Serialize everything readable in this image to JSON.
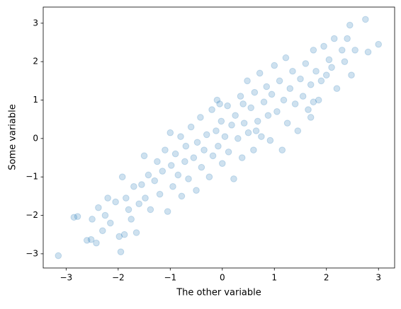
{
  "chart_data": {
    "type": "scatter",
    "xlabel": "The other variable",
    "ylabel": "Some variable",
    "color": "#1f77b4",
    "alpha": 0.22,
    "xlim": [
      -3.44,
      3.31
    ],
    "ylim": [
      -3.37,
      3.42
    ],
    "xticks": [
      {
        "value": -3,
        "label": "−3"
      },
      {
        "value": -2,
        "label": "−2"
      },
      {
        "value": -1,
        "label": "−1"
      },
      0,
      1,
      2,
      3
    ],
    "yticks": [
      {
        "value": -3,
        "label": "−3"
      },
      {
        "value": -2,
        "label": "−2"
      },
      {
        "value": -1,
        "label": "−1"
      },
      0,
      1,
      2,
      3
    ],
    "grid": false,
    "x": [
      -3.15,
      -2.85,
      -2.78,
      -2.6,
      -2.52,
      -2.5,
      -2.42,
      -2.38,
      -2.3,
      -2.25,
      -2.2,
      -2.15,
      -2.05,
      -1.98,
      -1.95,
      -1.92,
      -1.88,
      -1.85,
      -1.8,
      -1.75,
      -1.7,
      -1.65,
      -1.6,
      -1.55,
      -1.5,
      -1.48,
      -1.42,
      -1.38,
      -1.3,
      -1.25,
      -1.2,
      -1.15,
      -1.1,
      -1.05,
      -1.0,
      -0.98,
      -0.95,
      -0.9,
      -0.85,
      -0.8,
      -0.78,
      -0.72,
      -0.7,
      -0.65,
      -0.6,
      -0.55,
      -0.5,
      -0.48,
      -0.42,
      -0.4,
      -0.35,
      -0.3,
      -0.25,
      -0.2,
      -0.18,
      -0.12,
      -0.1,
      -0.08,
      -0.02,
      0.0,
      0.05,
      0.1,
      0.12,
      0.18,
      0.22,
      0.25,
      0.3,
      0.35,
      0.38,
      0.42,
      0.48,
      0.5,
      0.55,
      0.6,
      0.62,
      0.68,
      0.72,
      0.75,
      0.8,
      0.85,
      0.88,
      0.92,
      0.95,
      1.0,
      1.05,
      1.1,
      1.15,
      1.18,
      1.22,
      1.25,
      1.3,
      1.35,
      1.4,
      1.45,
      1.5,
      1.55,
      1.6,
      1.65,
      1.7,
      1.75,
      1.8,
      1.85,
      1.9,
      1.95,
      2.0,
      2.05,
      2.1,
      2.15,
      2.2,
      2.3,
      2.35,
      2.4,
      2.45,
      2.48,
      2.55,
      2.75,
      2.8,
      3.0,
      1.7,
      1.75,
      -0.05,
      0.4,
      0.65
    ],
    "y": [
      -3.05,
      -2.05,
      -2.03,
      -2.65,
      -2.63,
      -2.1,
      -2.72,
      -1.8,
      -2.4,
      -2.0,
      -1.55,
      -2.2,
      -1.65,
      -2.55,
      -2.95,
      -1.0,
      -2.5,
      -1.55,
      -1.85,
      -2.1,
      -1.25,
      -2.45,
      -1.7,
      -1.2,
      -0.45,
      -1.55,
      -0.95,
      -1.85,
      -1.1,
      -0.6,
      -1.45,
      -0.85,
      -0.3,
      -1.9,
      0.15,
      -0.7,
      -1.25,
      -0.4,
      -0.95,
      0.05,
      -1.5,
      -0.6,
      -0.2,
      -1.05,
      0.3,
      -0.5,
      -1.35,
      -0.1,
      0.55,
      -0.75,
      -0.3,
      0.1,
      -1.0,
      0.75,
      -0.45,
      0.2,
      1.0,
      -0.2,
      0.45,
      -0.65,
      0.05,
      0.85,
      -0.35,
      0.35,
      -1.05,
      0.6,
      0.0,
      1.1,
      -0.5,
      0.4,
      1.5,
      0.15,
      0.8,
      -0.3,
      1.2,
      0.45,
      1.7,
      0.05,
      0.95,
      1.35,
      0.6,
      -0.05,
      1.15,
      1.9,
      0.7,
      1.5,
      -0.3,
      1.0,
      2.1,
      0.4,
      1.3,
      1.75,
      0.9,
      0.2,
      1.55,
      1.1,
      1.95,
      0.75,
      1.4,
      2.3,
      1.75,
      1.0,
      1.5,
      2.4,
      1.65,
      2.05,
      1.85,
      2.6,
      1.3,
      2.3,
      2.0,
      2.6,
      2.95,
      1.65,
      2.3,
      3.1,
      2.25,
      2.45,
      0.55,
      0.95,
      0.9,
      0.9,
      0.2
    ]
  }
}
